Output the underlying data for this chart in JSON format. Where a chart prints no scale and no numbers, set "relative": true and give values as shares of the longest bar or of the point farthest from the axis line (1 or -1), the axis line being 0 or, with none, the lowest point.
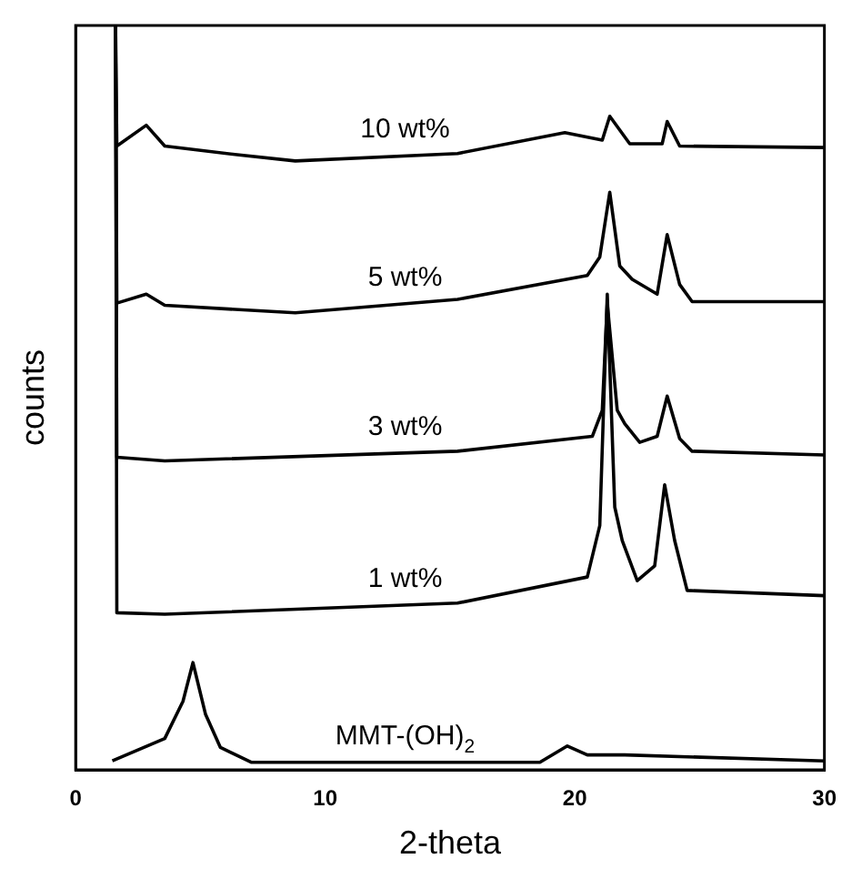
{
  "chart_data": {
    "type": "line",
    "xlabel": "2-theta",
    "ylabel": "counts",
    "relative": true,
    "xlim": [
      0,
      30
    ],
    "xticks": [
      0,
      10,
      20,
      30
    ],
    "marker": "none",
    "series": [
      {
        "name": "10 wt%",
        "color": "#000000",
        "x": [
          1.6,
          1.65,
          2.83,
          3.57,
          6.55,
          8.8,
          15.3,
          19.6,
          21.1,
          21.4,
          22.2,
          23.5,
          23.7,
          24.2,
          30
        ],
        "values": [
          1.0,
          0.838,
          0.866,
          0.838,
          0.826,
          0.818,
          0.828,
          0.856,
          0.846,
          0.878,
          0.841,
          0.841,
          0.871,
          0.838,
          0.836
        ]
      },
      {
        "name": "5 wt%",
        "color": "#000000",
        "x": [
          1.6,
          1.65,
          2.83,
          3.57,
          8.8,
          15.3,
          20.5,
          21.0,
          21.4,
          21.8,
          22.3,
          23.3,
          23.7,
          24.2,
          24.7,
          30
        ],
        "values": [
          1.0,
          0.627,
          0.639,
          0.624,
          0.614,
          0.632,
          0.664,
          0.689,
          0.776,
          0.677,
          0.659,
          0.639,
          0.719,
          0.652,
          0.629,
          0.629
        ]
      },
      {
        "name": "3 wt%",
        "color": "#000000",
        "x": [
          1.6,
          1.65,
          3.57,
          15.3,
          20.7,
          21.1,
          21.3,
          21.7,
          22.0,
          22.6,
          23.3,
          23.7,
          24.2,
          24.7,
          30
        ],
        "values": [
          1.0,
          0.42,
          0.415,
          0.428,
          0.448,
          0.483,
          0.627,
          0.483,
          0.465,
          0.44,
          0.448,
          0.502,
          0.445,
          0.428,
          0.423
        ]
      },
      {
        "name": "1 wt%",
        "color": "#000000",
        "x": [
          1.6,
          1.65,
          3.57,
          15.3,
          20.5,
          21.0,
          21.3,
          21.6,
          21.9,
          22.5,
          23.2,
          23.6,
          24.0,
          24.5,
          30
        ],
        "values": [
          1.0,
          0.211,
          0.209,
          0.224,
          0.259,
          0.328,
          0.639,
          0.353,
          0.308,
          0.254,
          0.274,
          0.383,
          0.308,
          0.241,
          0.234
        ]
      },
      {
        "name": "MMT-(OH)$_{2}$",
        "color": "#000000",
        "x": [
          1.47,
          3.57,
          4.3,
          4.7,
          5.2,
          5.8,
          7.05,
          18.6,
          19.7,
          20.5,
          22,
          30
        ],
        "values": [
          0.012,
          0.042,
          0.092,
          0.144,
          0.075,
          0.03,
          0.01,
          0.01,
          0.032,
          0.02,
          0.02,
          0.012
        ]
      }
    ]
  }
}
